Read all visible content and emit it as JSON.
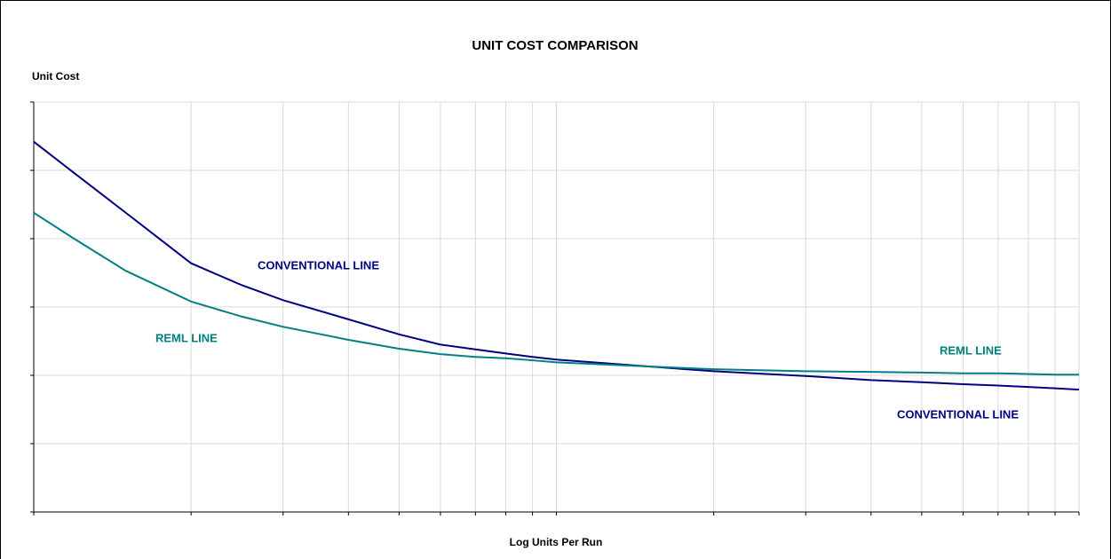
{
  "chart_data": {
    "type": "line",
    "title": "UNIT COST COMPARISON",
    "y_label": "Unit Cost",
    "x_label": "Log Units Per Run",
    "x_log": true,
    "grid": true,
    "xlim": [
      1,
      100
    ],
    "xticks": [
      1,
      2,
      3,
      4,
      5,
      6,
      7,
      8,
      9,
      10,
      20,
      30,
      40,
      50,
      60,
      70,
      80,
      90,
      100
    ],
    "ylim": [
      0,
      6
    ],
    "yticks": [
      0,
      1,
      2,
      3,
      4,
      5,
      6
    ],
    "x": [
      1,
      1.2,
      1.5,
      2,
      2.5,
      3,
      4,
      5,
      6,
      7,
      8,
      9,
      10,
      15,
      20,
      30,
      40,
      50,
      60,
      70,
      80,
      90,
      100
    ],
    "series": [
      {
        "name": "CONVENTIONAL LINE",
        "color": "#000080",
        "values": [
          5.42,
          4.95,
          4.38,
          3.64,
          3.32,
          3.1,
          2.82,
          2.6,
          2.45,
          2.38,
          2.32,
          2.27,
          2.23,
          2.13,
          2.06,
          1.99,
          1.93,
          1.9,
          1.87,
          1.85,
          1.83,
          1.81,
          1.79
        ]
      },
      {
        "name": "REML LINE",
        "color": "#008080",
        "values": [
          4.38,
          3.99,
          3.53,
          3.08,
          2.86,
          2.71,
          2.52,
          2.39,
          2.31,
          2.27,
          2.25,
          2.22,
          2.19,
          2.13,
          2.09,
          2.06,
          2.05,
          2.04,
          2.03,
          2.03,
          2.02,
          2.01,
          2.01
        ]
      }
    ],
    "annotations": [
      {
        "text": "CONVENTIONAL LINE",
        "color": "#000080"
      },
      {
        "text": "REML LINE",
        "color": "#008080"
      },
      {
        "text": "REML LINE",
        "color": "#008080"
      },
      {
        "text": "CONVENTIONAL LINE",
        "color": "#000080"
      }
    ]
  }
}
